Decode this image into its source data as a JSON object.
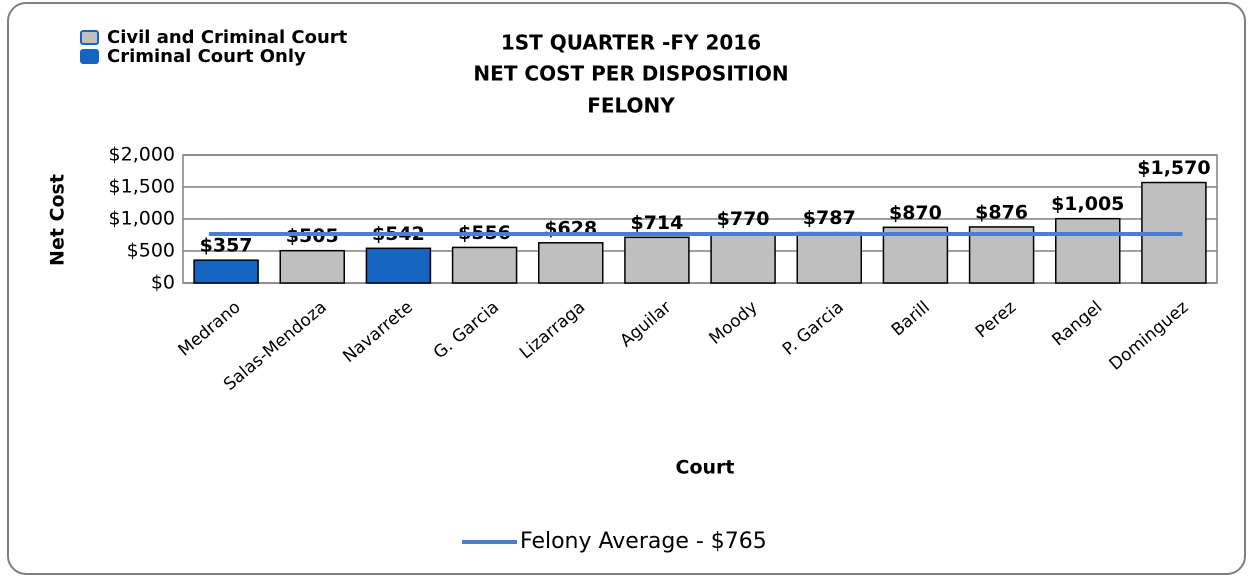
{
  "chart_data": {
    "type": "bar",
    "title": [
      "1ST QUARTER -FY 2016",
      "NET COST PER DISPOSITION",
      "FELONY"
    ],
    "x_label": "Court",
    "y_label": "Net Cost",
    "categories": [
      "Medrano",
      "Salas-Mendoza",
      "Navarrete",
      "G. Garcia",
      "Lizarraga",
      "Aguilar",
      "Moody",
      "P. Garcia",
      "Barill",
      "Perez",
      "Rangel",
      "Dominguez"
    ],
    "values": [
      357,
      505,
      542,
      556,
      628,
      714,
      770,
      787,
      870,
      876,
      1005,
      1570
    ],
    "value_labels": [
      "$357",
      "$505",
      "$542",
      "$556",
      "$628",
      "$714",
      "$770",
      "$787",
      "$870",
      "$876",
      "$1,005",
      "$1,570"
    ],
    "bar_colors": [
      "#1565c0",
      "#bfbfbf",
      "#1565c0",
      "#bfbfbf",
      "#bfbfbf",
      "#bfbfbf",
      "#bfbfbf",
      "#bfbfbf",
      "#bfbfbf",
      "#bfbfbf",
      "#bfbfbf",
      "#bfbfbf"
    ],
    "legend": [
      {
        "name": "Civil and Criminal Court",
        "color": "#bfbfbf"
      },
      {
        "name": "Criminal Court Only",
        "color": "#1565c0"
      }
    ],
    "average": {
      "name": "Felony Average - $765",
      "value": 765,
      "color": "#4a7fd0"
    },
    "ylim": [
      0,
      2000
    ],
    "yticks": [
      {
        "value": 0,
        "label": "$0"
      },
      {
        "value": 500,
        "label": "$500"
      },
      {
        "value": 1000,
        "label": "$1,000"
      },
      {
        "value": 1500,
        "label": "$1,500"
      },
      {
        "value": 2000,
        "label": "$2,000"
      }
    ],
    "grid": true
  }
}
